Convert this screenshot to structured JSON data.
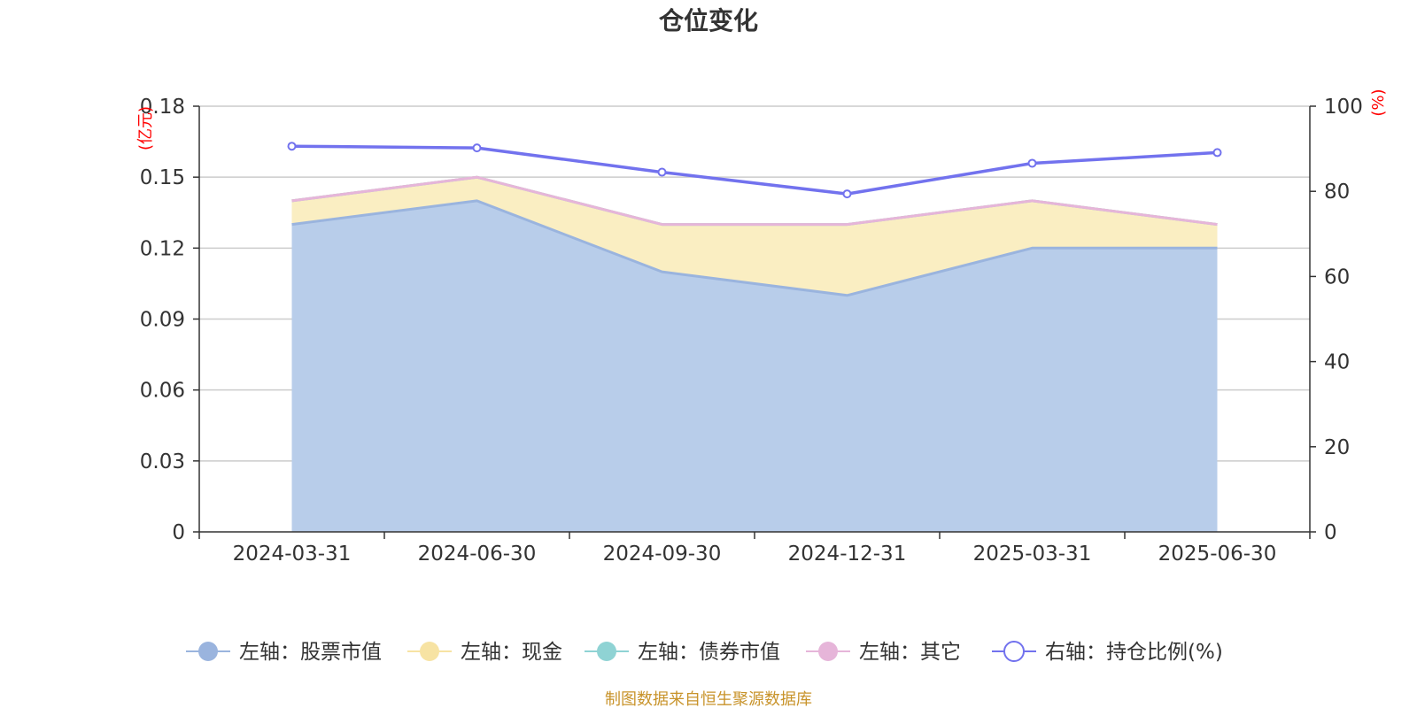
{
  "chart_data": {
    "type": "area",
    "title": "仓位变化",
    "categories": [
      "2024-03-31",
      "2024-06-30",
      "2024-09-30",
      "2024-12-31",
      "2025-03-31",
      "2025-06-30"
    ],
    "left_axis": {
      "unit": "(亿元)",
      "ylim": [
        0,
        0.18
      ],
      "ticks": [
        "0",
        "0.03",
        "0.06",
        "0.09",
        "0.12",
        "0.15",
        "0.18"
      ]
    },
    "right_axis": {
      "unit": "(%)",
      "ylim": [
        0,
        100
      ],
      "ticks": [
        "0",
        "20",
        "40",
        "60",
        "80",
        "100"
      ]
    },
    "series": [
      {
        "name": "左轴：股票市值",
        "axis": "left",
        "stack": true,
        "color": "#9ab4de",
        "fill": "#b8cdea",
        "values": [
          0.13,
          0.14,
          0.11,
          0.1,
          0.12,
          0.12
        ]
      },
      {
        "name": "左轴：现金",
        "axis": "left",
        "stack": true,
        "color": "#f7e3a3",
        "fill": "#faeec2",
        "values": [
          0.01,
          0.01,
          0.02,
          0.03,
          0.02,
          0.01
        ]
      },
      {
        "name": "左轴：债券市值",
        "axis": "left",
        "stack": true,
        "color": "#8fd3d4",
        "fill": "#bfe6e6",
        "values": [
          0,
          0,
          0,
          0,
          0,
          0
        ]
      },
      {
        "name": "左轴：其它",
        "axis": "left",
        "stack": true,
        "color": "#e6b5d9",
        "fill": "#f2d5ea",
        "values": [
          0,
          0,
          0,
          0,
          0,
          0
        ]
      },
      {
        "name": "右轴：持仓比例(%)",
        "axis": "right",
        "stack": false,
        "color": "#7272ee",
        "values": [
          90.6,
          90.2,
          84.5,
          79.4,
          86.6,
          89.1
        ]
      }
    ],
    "grid": true,
    "legend_position": "bottom"
  },
  "footer": {
    "source": "制图数据来自恒生聚源数据库"
  }
}
